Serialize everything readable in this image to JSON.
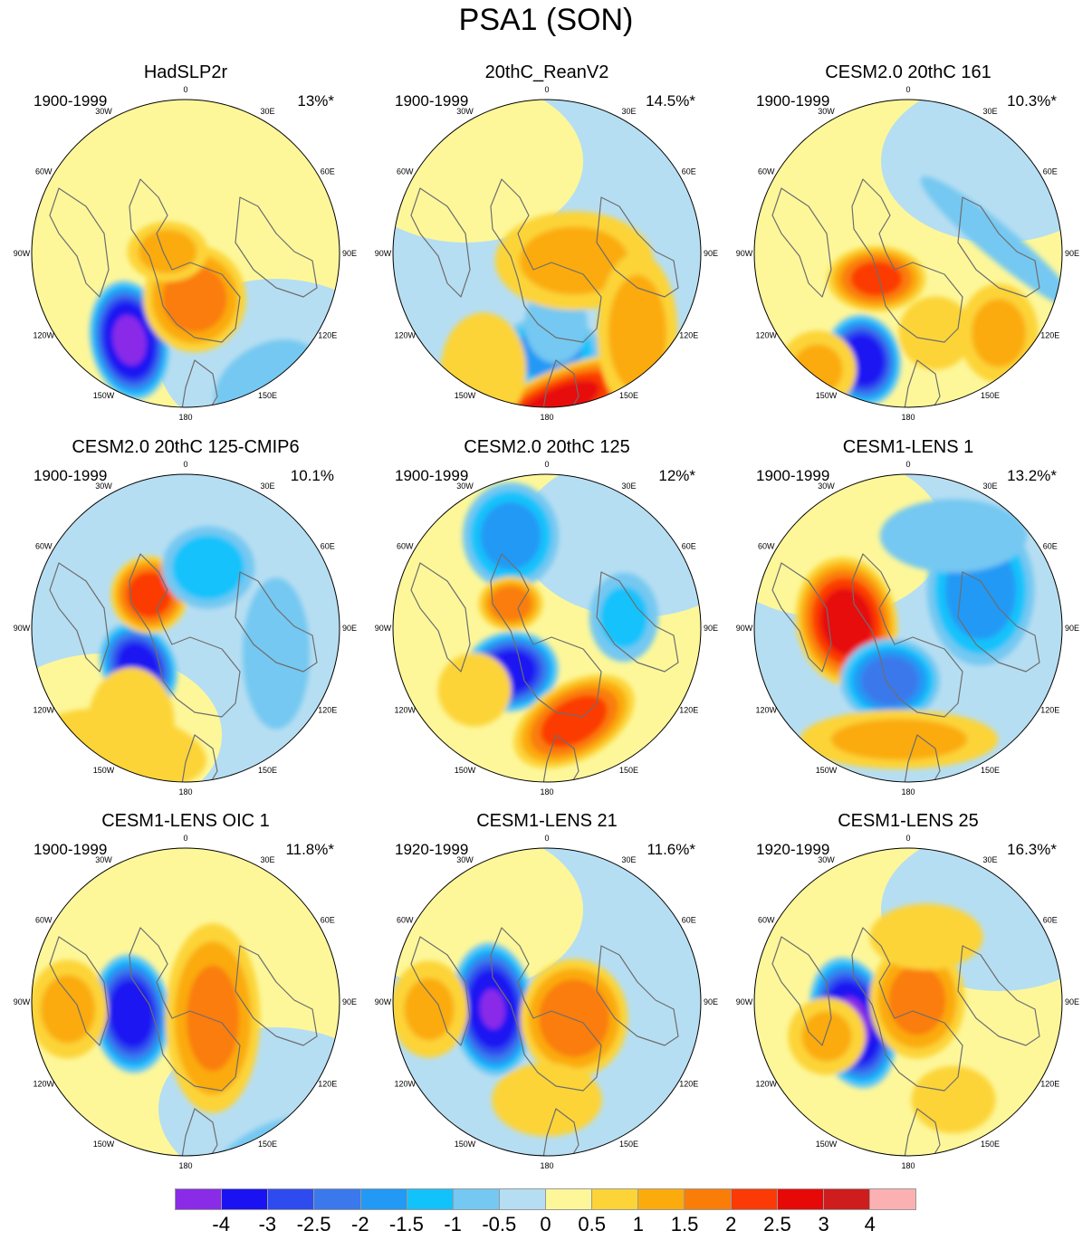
{
  "title": "PSA1 (SON)",
  "longitude_labels": [
    "0",
    "30E",
    "60E",
    "90E",
    "120E",
    "150E",
    "180",
    "150W",
    "120W",
    "90W",
    "60W",
    "30W"
  ],
  "panels": [
    {
      "title": "HadSLP2r",
      "period": "1900-1999",
      "pct": "13%*"
    },
    {
      "title": "20thC_ReanV2",
      "period": "1900-1999",
      "pct": "14.5%*"
    },
    {
      "title": "CESM2.0 20thC 161",
      "period": "1900-1999",
      "pct": "10.3%*"
    },
    {
      "title": "CESM2.0 20thC 125-CMIP6",
      "period": "1900-1999",
      "pct": "10.1%"
    },
    {
      "title": "CESM2.0 20thC 125",
      "period": "1900-1999",
      "pct": "12%*"
    },
    {
      "title": "CESM1-LENS 1",
      "period": "1900-1999",
      "pct": "13.2%*"
    },
    {
      "title": "CESM1-LENS OIC 1",
      "period": "1900-1999",
      "pct": "11.8%*"
    },
    {
      "title": "CESM1-LENS 21",
      "period": "1920-1999",
      "pct": "11.6%*"
    },
    {
      "title": "CESM1-LENS 25",
      "period": "1920-1999",
      "pct": "16.3%*"
    }
  ],
  "colorbar": {
    "colors": [
      "#8a2be8",
      "#1a12f2",
      "#2e4bef",
      "#3a78eb",
      "#2199f5",
      "#12c2fb",
      "#74c8f1",
      "#b6def2",
      "#fdf79a",
      "#fcd438",
      "#fbab0c",
      "#fa7d08",
      "#fb3a05",
      "#e70808",
      "#cf1d1d",
      "#fbb1b1"
    ],
    "labels": [
      "-4",
      "-3",
      "-2.5",
      "-2",
      "-1.5",
      "-1",
      "-0.5",
      "0",
      "0.5",
      "1",
      "1.5",
      "2",
      "2.5",
      "3",
      "4"
    ]
  }
}
